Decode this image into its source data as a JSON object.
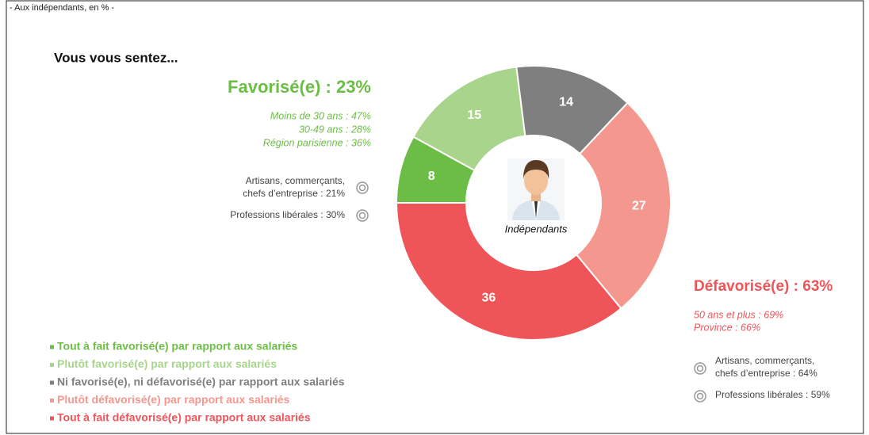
{
  "chart_data": {
    "type": "donut",
    "header": "- Aux indépendants, en % -",
    "title": "Vous vous sentez...",
    "center_label": "Indépendants",
    "categories": [
      "Tout à fait favorisé(e) par rapport aux salariés",
      "Plutôt favorisé(e) par rapport aux salariés",
      "Ni favorisé(e), ni défavorisé(e) par rapport aux salariés",
      "Plutôt défavorisé(e) par rapport aux salariés",
      "Tout à fait défavorisé(e) par rapport aux salariés"
    ],
    "values": [
      8,
      15,
      14,
      27,
      36
    ],
    "colors": [
      "#6cbd45",
      "#a8d48c",
      "#7f7f7f",
      "#f4978e",
      "#ef5459"
    ],
    "favorable": {
      "title": "Favorisé(e) : 23%",
      "details": [
        "Moins de 30 ans : 47%",
        "30-49 ans : 28%",
        "Région parisienne : 36%"
      ],
      "groups": [
        [
          "Artisans, commerçants,",
          "chefs d’entreprise : 21%"
        ],
        [
          "Professions libérales : 30%"
        ]
      ]
    },
    "unfavorable": {
      "title": "Défavorisé(e) : 63%",
      "details": [
        "50 ans et plus : 69%",
        "Province : 66%"
      ],
      "groups": [
        [
          "Artisans, commerçants,",
          "chefs d’entreprise : 64%"
        ],
        [
          "Professions libérales : 59%"
        ]
      ]
    }
  }
}
